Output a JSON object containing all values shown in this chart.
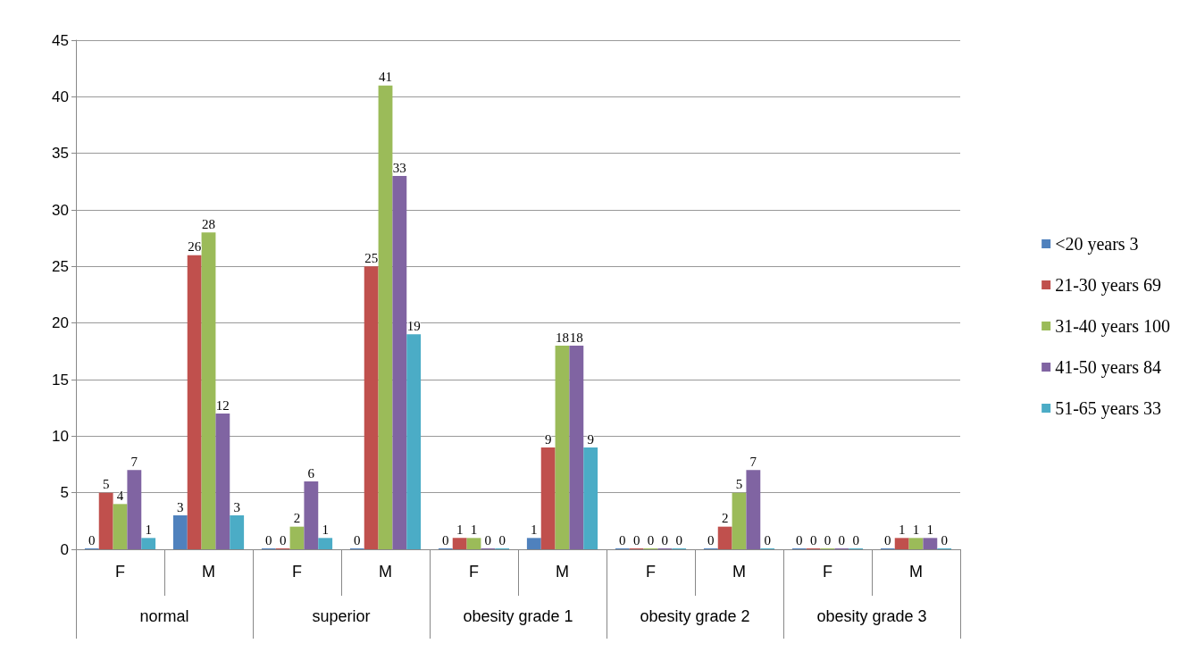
{
  "chart_data": {
    "type": "bar",
    "categories": [
      "F",
      "M",
      "F",
      "M",
      "F",
      "M",
      "F",
      "M",
      "F",
      "M"
    ],
    "annotations": [
      "normal",
      "superior",
      "obesity grade 1",
      "obesity grade 2",
      "obesity grade 3"
    ],
    "series": [
      {
        "name": "<20 years 3",
        "color": "#4f81bd",
        "values": [
          0,
          3,
          0,
          0,
          0,
          1,
          0,
          0,
          0,
          0
        ]
      },
      {
        "name": "21-30 years 69",
        "color": "#c0504d",
        "values": [
          5,
          26,
          0,
          25,
          1,
          9,
          0,
          2,
          0,
          1
        ]
      },
      {
        "name": "31-40 years 100",
        "color": "#9bbb59",
        "values": [
          4,
          28,
          2,
          41,
          1,
          18,
          0,
          5,
          0,
          1
        ]
      },
      {
        "name": "41-50 years 84",
        "color": "#8064a2",
        "values": [
          7,
          12,
          6,
          33,
          0,
          18,
          0,
          7,
          0,
          1
        ]
      },
      {
        "name": "51-65 years 33",
        "color": "#4bacc6",
        "values": [
          1,
          3,
          1,
          19,
          0,
          9,
          0,
          0,
          0,
          0
        ]
      }
    ],
    "ylim": [
      0,
      45
    ],
    "yticks": [
      0,
      5,
      10,
      15,
      20,
      25,
      30,
      35,
      40,
      45
    ],
    "grid": "y",
    "legend": "right",
    "data_labels": true
  }
}
